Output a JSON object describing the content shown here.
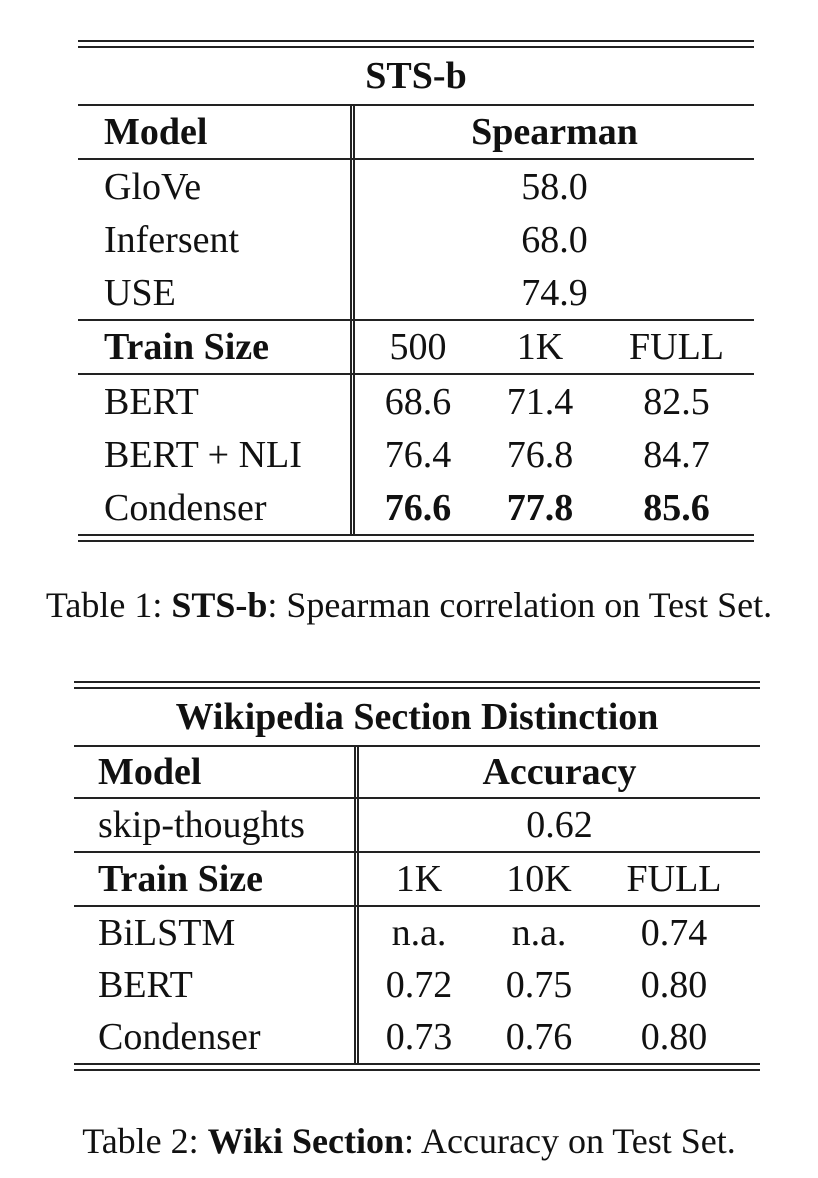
{
  "table1": {
    "title": "STS-b",
    "header": {
      "model": "Model",
      "metric": "Spearman"
    },
    "baselines": [
      {
        "model": "GloVe",
        "value": "58.0"
      },
      {
        "model": "Infersent",
        "value": "68.0"
      },
      {
        "model": "USE",
        "value": "74.9"
      }
    ],
    "train_size_header": {
      "label": "Train Size",
      "sizes": [
        "500",
        "1K",
        "FULL"
      ]
    },
    "rows": [
      {
        "model": "BERT",
        "values": [
          "68.6",
          "71.4",
          "82.5"
        ],
        "bold": false
      },
      {
        "model": "BERT + NLI",
        "values": [
          "76.4",
          "76.8",
          "84.7"
        ],
        "bold": false
      },
      {
        "model": "Condenser",
        "values": [
          "76.6",
          "77.8",
          "85.6"
        ],
        "bold": true
      }
    ],
    "caption": {
      "prefix": "Table 1: ",
      "bold": "STS-b",
      "rest": ": Spearman correlation on Test Set."
    }
  },
  "table2": {
    "title": "Wikipedia Section Distinction",
    "header": {
      "model": "Model",
      "metric": "Accuracy"
    },
    "baselines": [
      {
        "model": "skip-thoughts",
        "value": "0.62"
      }
    ],
    "train_size_header": {
      "label": "Train Size",
      "sizes": [
        "1K",
        "10K",
        "FULL"
      ]
    },
    "rows": [
      {
        "model": "BiLSTM",
        "values": [
          "n.a.",
          "n.a.",
          "0.74"
        ],
        "bold": false
      },
      {
        "model": "BERT",
        "values": [
          "0.72",
          "0.75",
          "0.80"
        ],
        "bold": false
      },
      {
        "model": "Condenser",
        "values": [
          "0.73",
          "0.76",
          "0.80"
        ],
        "bold": false
      }
    ],
    "caption": {
      "prefix": "Table 2: ",
      "bold": "Wiki Section",
      "rest": ": Accuracy on Test Set."
    }
  }
}
